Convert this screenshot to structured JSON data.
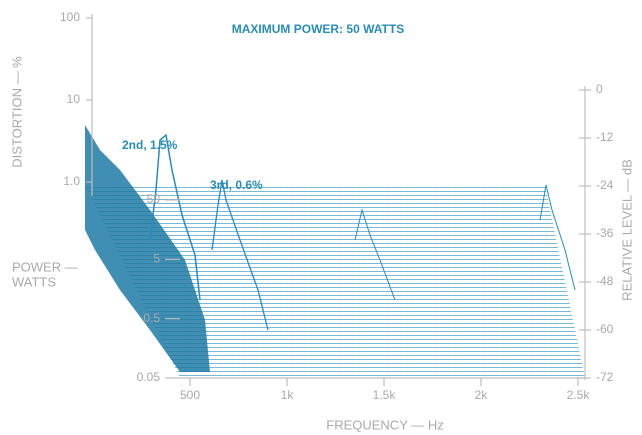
{
  "chart_data": {
    "type": "waterfall",
    "title": "MAXIMUM POWER: 50 WATTS",
    "color": "#2a8cb4",
    "y_label": "DISTORTION — %",
    "y_scale": "log",
    "ylim": [
      1,
      100
    ],
    "yticks": [
      100,
      10,
      {
        "value": 1,
        "label": "1.0"
      }
    ],
    "z_label_lines": [
      "POWER —",
      "WATTS"
    ],
    "z_scale": "log",
    "zlim": [
      0.05,
      50
    ],
    "zticks": [
      50,
      5,
      0.5,
      0.05
    ],
    "y2_label": "RELATIVE LEVEL — dB",
    "y2lim": [
      -72,
      0
    ],
    "y2ticks": [
      0,
      -12,
      -24,
      -36,
      -48,
      -60,
      -72
    ],
    "x_label": "FREQUENCY — Hz",
    "xlim": [
      500,
      2500
    ],
    "xticks": [
      500,
      {
        "value": 1000,
        "label": "1k"
      },
      {
        "value": 1500,
        "label": "1.5k"
      },
      {
        "value": 2000,
        "label": "2k"
      },
      {
        "value": 2500,
        "label": "2.5k"
      }
    ],
    "annotations": [
      "2nd, 1.5%",
      "3rd, 0.6%"
    ]
  }
}
